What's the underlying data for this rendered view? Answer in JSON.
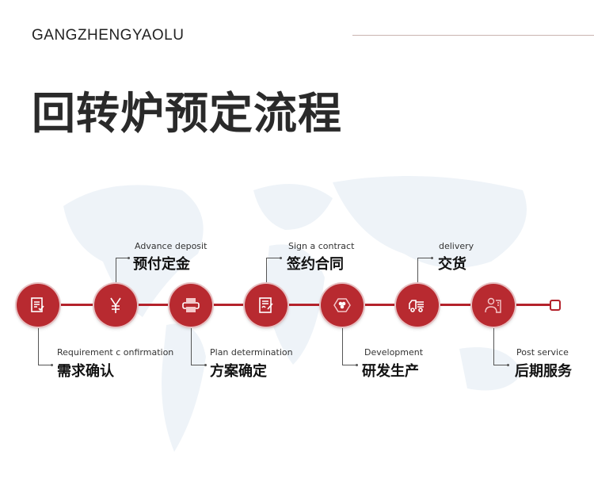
{
  "header": {
    "brand": "GANGZHENGYAOLU",
    "title": "回转炉预定流程"
  },
  "colors": {
    "accent": "#b82a30",
    "text": "#222222"
  },
  "steps": [
    {
      "en": "Requirement  c onfirmation",
      "zh": "需求确认",
      "icon": "document-check-icon",
      "position": "bottom"
    },
    {
      "en": "Advance deposit",
      "zh": "预付定金",
      "icon": "yen-icon",
      "position": "top"
    },
    {
      "en": "Plan determination",
      "zh": "方案确定",
      "icon": "printer-icon",
      "position": "bottom"
    },
    {
      "en": "Sign a contract",
      "zh": "签约合同",
      "icon": "contract-sign-icon",
      "position": "top"
    },
    {
      "en": "Development",
      "zh": "研发生产",
      "icon": "hexagon-dots-icon",
      "position": "bottom"
    },
    {
      "en": "delivery",
      "zh": "交货",
      "icon": "truck-icon",
      "position": "top"
    },
    {
      "en": "Post service",
      "zh": "后期服务",
      "icon": "service-person-icon",
      "position": "bottom"
    }
  ]
}
